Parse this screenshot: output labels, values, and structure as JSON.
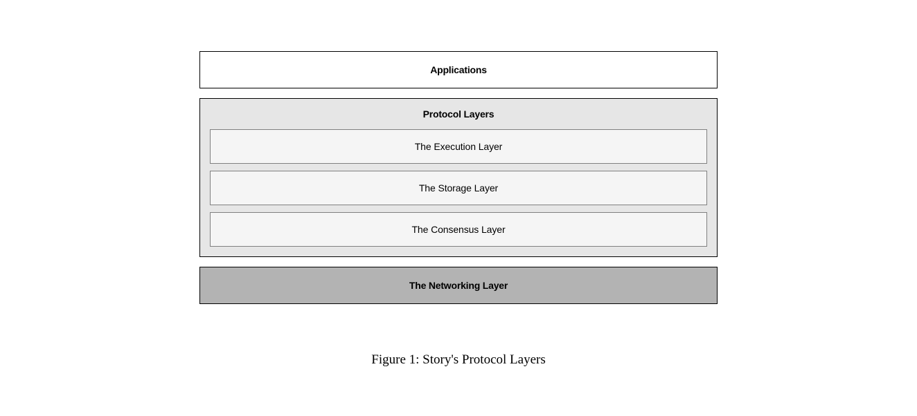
{
  "diagram": {
    "type": "layered-architecture",
    "blocks": {
      "applications": {
        "label": "Applications",
        "background_color": "#ffffff",
        "border_color": "#000000",
        "text_color": "#000000",
        "font_weight": 700
      },
      "protocol": {
        "label": "Protocol Layers",
        "background_color": "#e6e6e6",
        "border_color": "#000000",
        "text_color": "#000000",
        "font_weight": 700,
        "inner_blocks": [
          {
            "label": "The Execution Layer",
            "background_color": "#f5f5f5",
            "border_color": "#808080",
            "text_color": "#000000",
            "font_weight": 400
          },
          {
            "label": "The Storage Layer",
            "background_color": "#f5f5f5",
            "border_color": "#808080",
            "text_color": "#000000",
            "font_weight": 400
          },
          {
            "label": "The Consensus Layer",
            "background_color": "#f5f5f5",
            "border_color": "#808080",
            "text_color": "#000000",
            "font_weight": 400
          }
        ]
      },
      "networking": {
        "label": "The Networking Layer",
        "background_color": "#b3b3b3",
        "border_color": "#000000",
        "text_color": "#000000",
        "font_weight": 700
      }
    },
    "layout": {
      "container_width": 748,
      "block_gap": 14,
      "inner_gap": 10,
      "padding_top": 74
    }
  },
  "caption": {
    "text": "Figure 1: Story's Protocol Layers",
    "font_family": "Times New Roman",
    "font_size": 19,
    "text_color": "#000000"
  }
}
